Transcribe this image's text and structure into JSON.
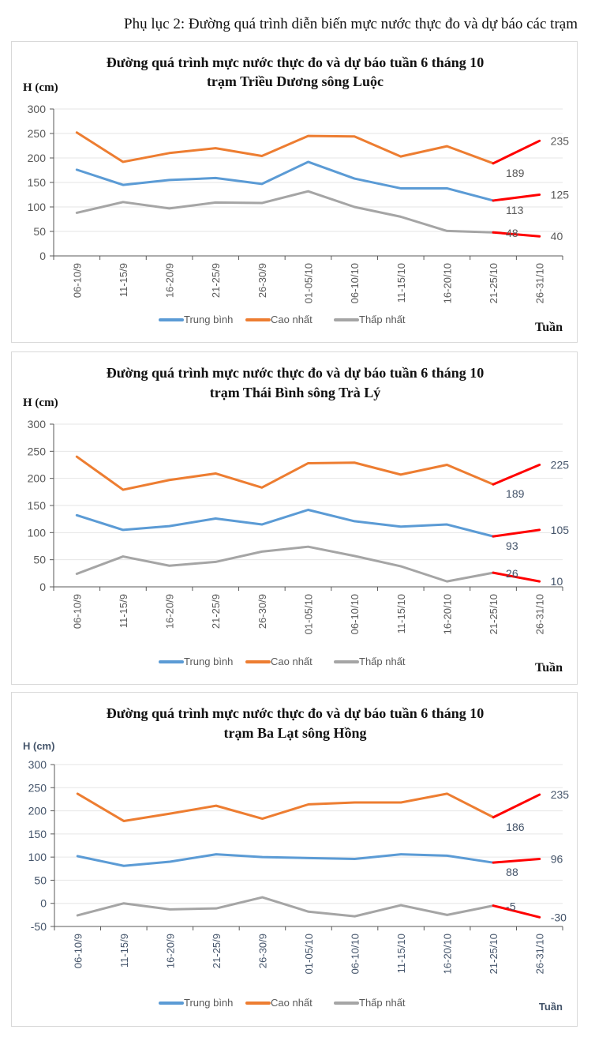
{
  "page": {
    "title": "Phụ lục 2: Đường quá trình diễn biến mực nước thực đo và dự báo các trạm"
  },
  "colors": {
    "trung_binh": "#5b9bd5",
    "cao_nhat": "#ed7d31",
    "thap_nhat": "#a5a5a5",
    "forecast": "#ff0000",
    "grid": "#e6e6e6",
    "axis": "#595959"
  },
  "chart_data": [
    {
      "type": "line",
      "title_line1": "Đường quá trình mực nước thực đo và dự báo tuần 6 tháng 10",
      "title_line2": "trạm Triều Dương sông Luộc",
      "ylabel": "H (cm)",
      "xlabel": "Tuần",
      "ylim": [
        0,
        300
      ],
      "yticks": [
        "0",
        "50",
        "100",
        "150",
        "200",
        "250",
        "300"
      ],
      "ytick_values": [
        0,
        50,
        100,
        150,
        200,
        250,
        300
      ],
      "categories": [
        "06-10/9",
        "11-15/9",
        "16-20/9",
        "21-25/9",
        "26-30/9",
        "01-05/10",
        "06-10/10",
        "11-15/10",
        "16-20/10",
        "21-25/10",
        "26-31/10"
      ],
      "grid": true,
      "legend_position": "bottom",
      "series": [
        {
          "name": "Trung bình",
          "key": "trung_binh",
          "values": [
            176,
            145,
            155,
            159,
            147,
            192,
            158,
            138,
            138,
            113,
            null
          ],
          "forecast": [
            113,
            125
          ],
          "labels": [
            "113",
            "125"
          ]
        },
        {
          "name": "Cao nhất",
          "key": "cao_nhat",
          "values": [
            252,
            192,
            210,
            220,
            204,
            245,
            244,
            203,
            224,
            189,
            null
          ],
          "forecast": [
            189,
            235
          ],
          "labels": [
            "189",
            "235"
          ]
        },
        {
          "name": "Thấp nhất",
          "key": "thap_nhat",
          "values": [
            88,
            110,
            97,
            109,
            108,
            132,
            100,
            80,
            51,
            48,
            null
          ],
          "forecast": [
            48,
            40
          ],
          "labels": [
            "48",
            "40"
          ]
        }
      ]
    },
    {
      "type": "line",
      "title_line1": "Đường quá trình mực nước thực đo và dự báo tuần 6 tháng 10",
      "title_line2": "trạm Thái Bình sông Trà Lý",
      "ylabel": "H (cm)",
      "xlabel": "Tuần",
      "ylim": [
        0,
        300
      ],
      "yticks": [
        "0",
        "50",
        "100",
        "150",
        "200",
        "250",
        "300"
      ],
      "ytick_values": [
        0,
        50,
        100,
        150,
        200,
        250,
        300
      ],
      "categories": [
        "06-10/9",
        "11-15/9",
        "16-20/9",
        "21-25/9",
        "26-30/9",
        "01-05/10",
        "06-10/10",
        "11-15/10",
        "16-20/10",
        "21-25/10",
        "26-31/10"
      ],
      "grid": true,
      "legend_position": "bottom",
      "series": [
        {
          "name": "Trung bình",
          "key": "trung_binh",
          "values": [
            132,
            105,
            112,
            126,
            115,
            142,
            121,
            111,
            115,
            93,
            null
          ],
          "forecast": [
            93,
            105
          ],
          "labels": [
            "93",
            "105"
          ]
        },
        {
          "name": "Cao nhất",
          "key": "cao_nhat",
          "values": [
            240,
            179,
            197,
            209,
            183,
            228,
            229,
            207,
            225,
            189,
            null
          ],
          "forecast": [
            189,
            225
          ],
          "labels": [
            "189",
            "225"
          ]
        },
        {
          "name": "Thấp nhất",
          "key": "thap_nhat",
          "values": [
            24,
            56,
            39,
            46,
            65,
            74,
            57,
            38,
            10,
            26,
            null
          ],
          "forecast": [
            26,
            10
          ],
          "labels": [
            "26",
            "10"
          ]
        }
      ]
    },
    {
      "type": "line",
      "title_line1": "Đường quá trình mực nước thực đo và dự báo tuần 6 tháng 10",
      "title_line2": "trạm Ba Lạt sông Hồng",
      "ylabel": "H (cm)",
      "xlabel": "Tuần",
      "ylim": [
        -50,
        300
      ],
      "yticks": [
        "-50",
        "0",
        "50",
        "100",
        "150",
        "200",
        "250",
        "300"
      ],
      "ytick_values": [
        -50,
        0,
        50,
        100,
        150,
        200,
        250,
        300
      ],
      "categories": [
        "06-10/9",
        "11-15/9",
        "16-20/9",
        "21-25/9",
        "26-30/9",
        "01-05/10",
        "06-10/10",
        "11-15/10",
        "16-20/10",
        "21-25/10",
        "26-31/10"
      ],
      "grid": true,
      "legend_position": "bottom",
      "series": [
        {
          "name": "Trung bình",
          "key": "trung_binh",
          "values": [
            102,
            81,
            90,
            106,
            100,
            98,
            96,
            106,
            103,
            88,
            null
          ],
          "forecast": [
            88,
            96
          ],
          "labels": [
            "88",
            "96"
          ]
        },
        {
          "name": "Cao nhất",
          "key": "cao_nhat",
          "values": [
            237,
            178,
            194,
            211,
            183,
            214,
            218,
            218,
            237,
            186,
            null
          ],
          "forecast": [
            186,
            235
          ],
          "labels": [
            "186",
            "235"
          ]
        },
        {
          "name": "Thấp nhất",
          "key": "thap_nhat",
          "values": [
            -26,
            0,
            -13,
            -11,
            13,
            -18,
            -28,
            -4,
            -25,
            -5,
            null
          ],
          "forecast": [
            -5,
            -30
          ],
          "labels": [
            "-5",
            "-30"
          ]
        }
      ]
    }
  ]
}
